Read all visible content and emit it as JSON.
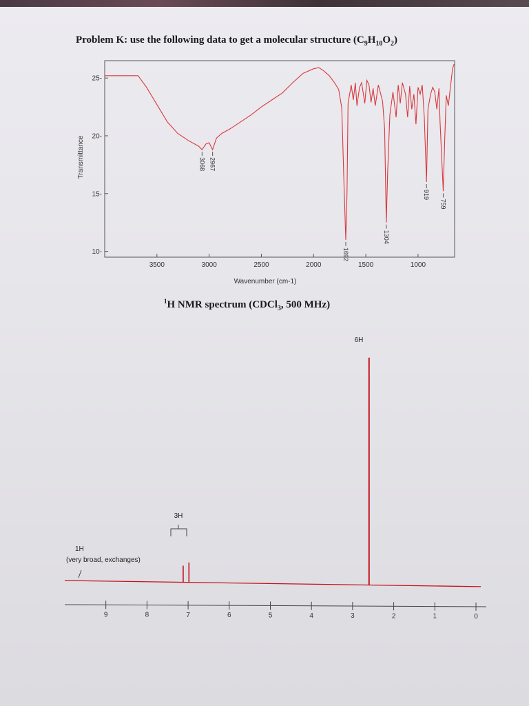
{
  "problem": {
    "title_main": "Problem K: use the following data to get a molecular structure (C",
    "title_c_sub": "9",
    "title_h": "H",
    "title_h_sub": "10",
    "title_o": "O",
    "title_o_sub": "2",
    "title_end": ")"
  },
  "nmr_heading": {
    "sup": "1",
    "text": "H NMR spectrum (CDCl",
    "sub": "3",
    "end": ", 500 MHz)"
  },
  "colors": {
    "ir_line": "#d9393d",
    "nmr_line": "#c4121c",
    "axis": "#444444"
  },
  "chart_data": [
    {
      "type": "line",
      "title": "",
      "xlabel": "Wavenumber (cm-1)",
      "ylabel": "Transmittance",
      "xlim": [
        4000,
        650
      ],
      "ylim": [
        9.5,
        26.5
      ],
      "x_reversed": true,
      "xticks": [
        3500,
        3000,
        2500,
        2000,
        1500,
        1000
      ],
      "yticks": [
        10,
        15,
        20,
        25
      ],
      "grid": false,
      "points": [
        [
          4000,
          25.2
        ],
        [
          3900,
          25.2
        ],
        [
          3680,
          25.2
        ],
        [
          3600,
          24.2
        ],
        [
          3500,
          22.7
        ],
        [
          3400,
          21.2
        ],
        [
          3300,
          20.2
        ],
        [
          3200,
          19.6
        ],
        [
          3100,
          19.1
        ],
        [
          3068,
          18.8
        ],
        [
          3030,
          19.3
        ],
        [
          3000,
          19.4
        ],
        [
          2967,
          18.8
        ],
        [
          2930,
          19.8
        ],
        [
          2880,
          20.2
        ],
        [
          2800,
          20.6
        ],
        [
          2700,
          21.2
        ],
        [
          2600,
          21.8
        ],
        [
          2500,
          22.5
        ],
        [
          2400,
          23.1
        ],
        [
          2300,
          23.7
        ],
        [
          2200,
          24.6
        ],
        [
          2100,
          25.4
        ],
        [
          2000,
          25.8
        ],
        [
          1950,
          25.9
        ],
        [
          1900,
          25.6
        ],
        [
          1850,
          25.2
        ],
        [
          1800,
          24.6
        ],
        [
          1760,
          24.0
        ],
        [
          1730,
          22.4
        ],
        [
          1710,
          16.0
        ],
        [
          1692,
          11.0
        ],
        [
          1680,
          15.0
        ],
        [
          1670,
          22.8
        ],
        [
          1640,
          24.4
        ],
        [
          1620,
          23.1
        ],
        [
          1600,
          24.6
        ],
        [
          1585,
          22.6
        ],
        [
          1560,
          24.2
        ],
        [
          1540,
          24.6
        ],
        [
          1510,
          22.8
        ],
        [
          1490,
          24.8
        ],
        [
          1470,
          24.4
        ],
        [
          1450,
          22.9
        ],
        [
          1430,
          24.1
        ],
        [
          1410,
          22.6
        ],
        [
          1380,
          24.4
        ],
        [
          1340,
          23.0
        ],
        [
          1320,
          20.6
        ],
        [
          1304,
          12.5
        ],
        [
          1290,
          17.0
        ],
        [
          1270,
          21.8
        ],
        [
          1240,
          23.8
        ],
        [
          1210,
          21.6
        ],
        [
          1190,
          24.4
        ],
        [
          1170,
          22.8
        ],
        [
          1150,
          24.6
        ],
        [
          1120,
          23.6
        ],
        [
          1100,
          21.6
        ],
        [
          1080,
          24.3
        ],
        [
          1060,
          22.3
        ],
        [
          1040,
          23.6
        ],
        [
          1020,
          21.0
        ],
        [
          1000,
          24.2
        ],
        [
          980,
          23.6
        ],
        [
          960,
          24.4
        ],
        [
          940,
          21.6
        ],
        [
          919,
          16.0
        ],
        [
          905,
          22.3
        ],
        [
          880,
          23.6
        ],
        [
          860,
          24.2
        ],
        [
          840,
          23.8
        ],
        [
          820,
          22.3
        ],
        [
          800,
          24.1
        ],
        [
          790,
          21.3
        ],
        [
          770,
          17.4
        ],
        [
          759,
          15.2
        ],
        [
          745,
          19.6
        ],
        [
          730,
          23.5
        ],
        [
          710,
          22.6
        ],
        [
          690,
          24.2
        ],
        [
          670,
          25.8
        ],
        [
          655,
          26.2
        ]
      ],
      "annotations": [
        {
          "x": 3068,
          "y": 18.8,
          "label": "3068"
        },
        {
          "x": 2967,
          "y": 18.8,
          "label": "2967"
        },
        {
          "x": 1692,
          "y": 11.0,
          "label": "1692"
        },
        {
          "x": 1304,
          "y": 12.5,
          "label": "1304"
        },
        {
          "x": 919,
          "y": 16.0,
          "label": "919"
        },
        {
          "x": 759,
          "y": 15.2,
          "label": "759"
        }
      ]
    },
    {
      "type": "line",
      "title": "",
      "xlabel": "",
      "ylabel": "",
      "xlim": [
        10,
        0
      ],
      "x_reversed": true,
      "xticks": [
        9,
        8,
        7,
        6,
        5,
        4,
        3,
        2,
        1,
        0
      ],
      "ylim": [
        0,
        1
      ],
      "grid": false,
      "peaks": [
        {
          "shift": 7.12,
          "height": 0.066,
          "label": ""
        },
        {
          "shift": 6.98,
          "height": 0.079,
          "label": ""
        },
        {
          "shift": 2.6,
          "height": 0.895,
          "label": "6H"
        }
      ],
      "annotations": [
        {
          "label": "3H",
          "x": 7.05
        },
        {
          "label": "6H",
          "x": 2.6
        },
        {
          "label": "1H",
          "x": 9.6
        },
        {
          "label": "(very broad, exchanges)",
          "x": 9.6
        }
      ]
    }
  ]
}
